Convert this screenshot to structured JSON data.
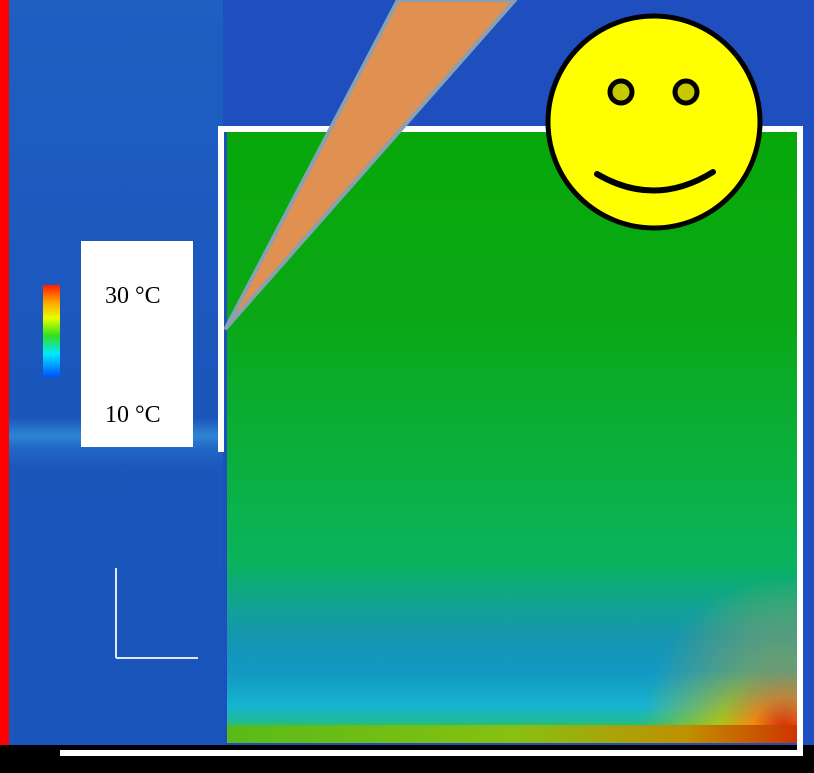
{
  "legend": {
    "high_label": "30 °C",
    "low_label": "10 °C",
    "scale_colors": [
      "#ff1a00",
      "#ffa000",
      "#e8ff00",
      "#30e020",
      "#00e8ff",
      "#0050ff"
    ]
  },
  "colors": {
    "cold_region": "#1c58bd",
    "box_interior": "#0aa815",
    "frame": "#ffffff",
    "probe_fill": "#e09050",
    "probe_outline": "#8aa0b0",
    "smiley_face": "#ffff00",
    "smiley_eye": "#c8c800",
    "edge_red": "#ff0000"
  }
}
